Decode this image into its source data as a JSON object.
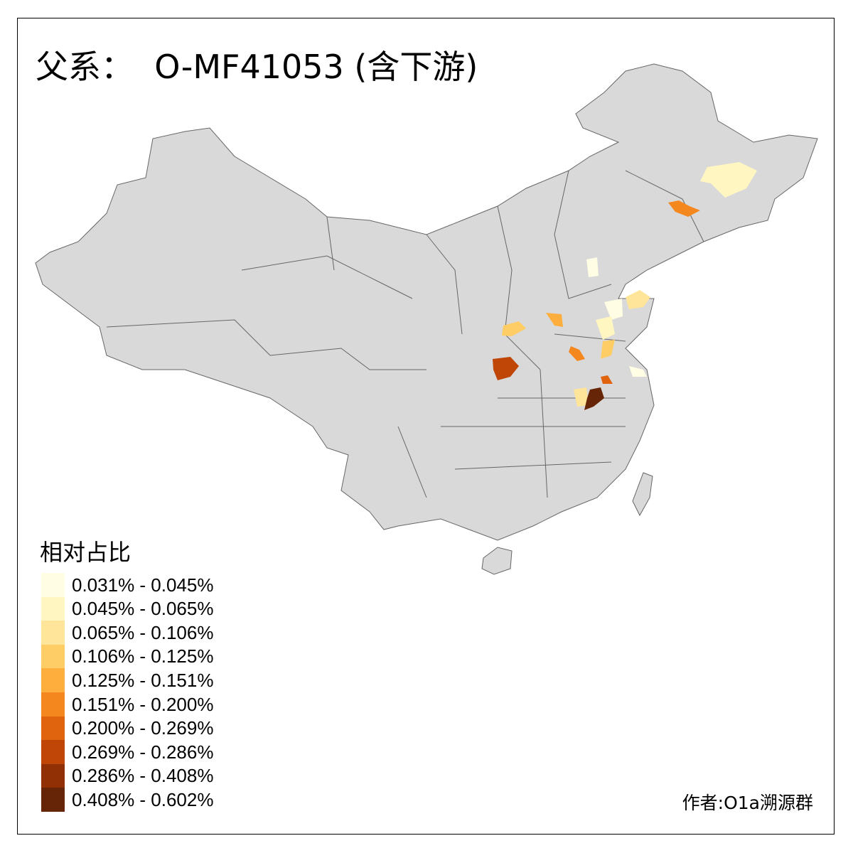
{
  "title": "父系：  O-MF41053 (含下游)",
  "legend": {
    "title": "相对占比",
    "items": [
      {
        "label": "0.031% - 0.045%",
        "color": "#FFFDE3"
      },
      {
        "label": "0.045% - 0.065%",
        "color": "#FFF6C1"
      },
      {
        "label": "0.065% - 0.106%",
        "color": "#FEE59A"
      },
      {
        "label": "0.106% - 0.125%",
        "color": "#FECD66"
      },
      {
        "label": "0.125% - 0.151%",
        "color": "#FDAE3D"
      },
      {
        "label": "0.151% - 0.200%",
        "color": "#F5871F"
      },
      {
        "label": "0.200% - 0.269%",
        "color": "#E0640E"
      },
      {
        "label": "0.269% - 0.286%",
        "color": "#BF4606"
      },
      {
        "label": "0.286% - 0.408%",
        "color": "#923005"
      },
      {
        "label": "0.408% - 0.602%",
        "color": "#662506"
      }
    ]
  },
  "map": {
    "base_color": "#D9D9D9",
    "border_color": "#666666"
  },
  "author": "作者:O1a溯源群"
}
